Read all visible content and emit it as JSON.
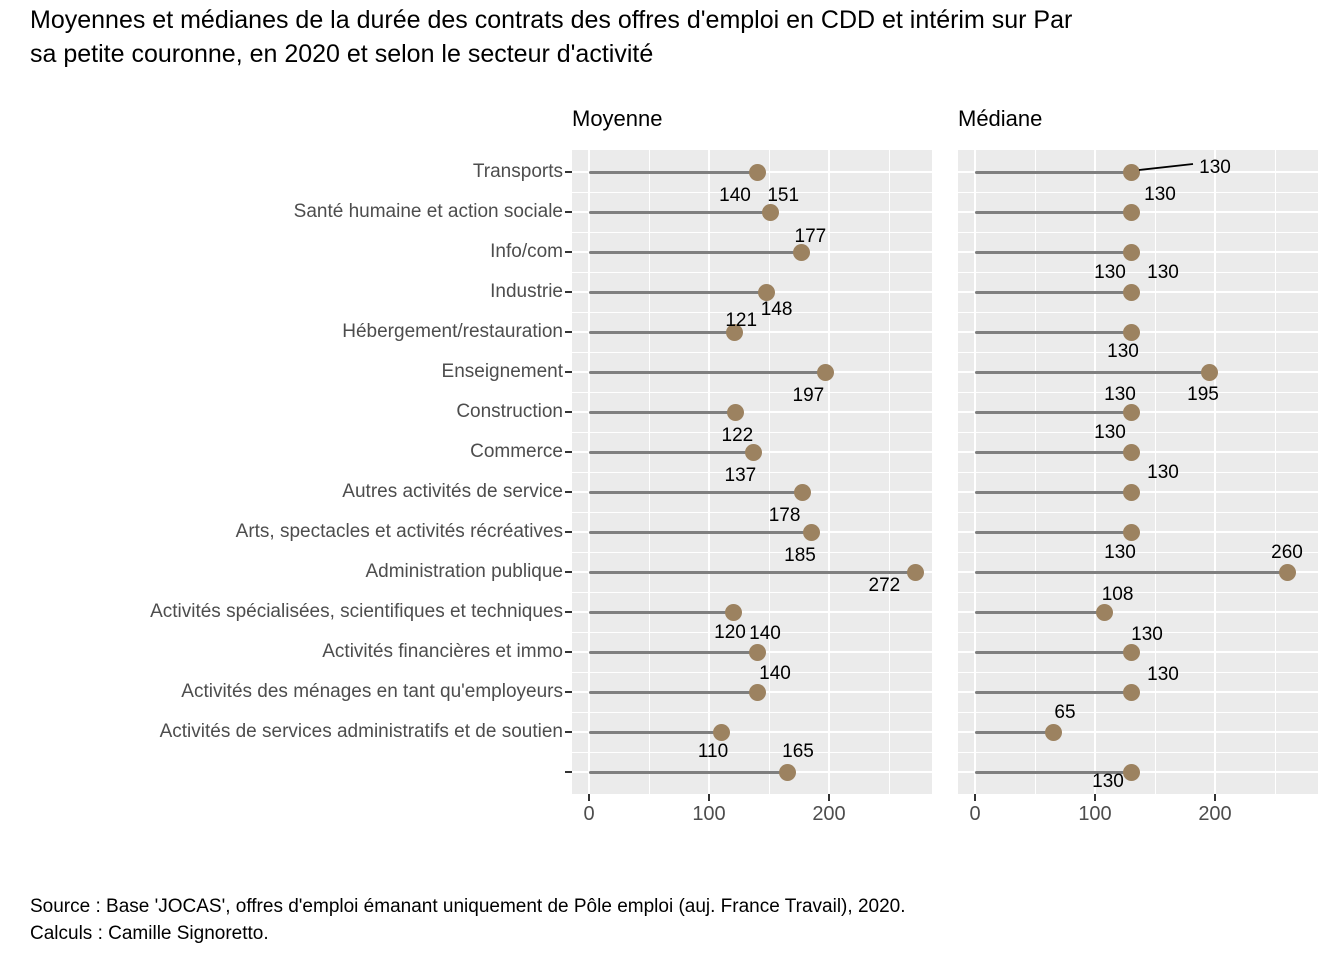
{
  "title": {
    "line1": "Moyennes et médianes de la durée des contrats des offres d'emploi en CDD et intérim sur Par",
    "line2": "sa petite couronne, en 2020 et selon le secteur d'activité"
  },
  "source": {
    "line1": "Source : Base 'JOCAS', offres d'emploi émanant uniquement de Pôle emploi (auj. France Travail), 2020.",
    "line2": "Calculs : Camille Signoretto."
  },
  "chart_data": {
    "type": "scatter",
    "variant": "lollipop-dot-plot",
    "facets": [
      "Moyenne",
      "Médiane"
    ],
    "categories": [
      "Transports",
      "Santé humaine et action sociale",
      "Info/com",
      "Industrie",
      "Hébergement/restauration",
      "Enseignement",
      "Construction",
      "Commerce",
      "Autres activités de service",
      "Arts, spectacles et activités récréatives",
      "Administration publique",
      "Activités spécialisées, scientifiques et techniques",
      "Activités financières et immo",
      "Activités des ménages en tant qu'employeurs",
      "Activités de services administratifs et de soutien",
      ""
    ],
    "series": [
      {
        "name": "Moyenne",
        "values": [
          140,
          151,
          177,
          148,
          121,
          197,
          122,
          137,
          178,
          185,
          272,
          120,
          140,
          140,
          110,
          165
        ]
      },
      {
        "name": "Médiane",
        "values": [
          130,
          130,
          130,
          130,
          130,
          195,
          130,
          130,
          130,
          130,
          260,
          108,
          130,
          130,
          65,
          130
        ]
      }
    ],
    "xticks": [
      "0",
      "100",
      "200"
    ],
    "xtick_values": [
      0,
      100,
      200
    ],
    "xlim": [
      -14,
      286
    ],
    "grid": true,
    "legend": "none",
    "annotation_leader": {
      "facet": "Médiane",
      "category": "Transports",
      "label": "130"
    },
    "colors": {
      "point": "#9C8260",
      "stem": "#7F7F7F",
      "panel_bg": "#EBEBEB",
      "grid": "#FFFFFF",
      "axis_text": "#4D4D4D",
      "tick": "#333333",
      "value_label": "#000000",
      "leader": "#000000"
    },
    "label_offsets": {
      "moyenne": [
        [
          -22,
          24
        ],
        [
          13,
          -16
        ],
        [
          9,
          -15
        ],
        [
          10,
          18
        ],
        [
          7,
          -11
        ],
        [
          -17,
          24
        ],
        [
          2,
          24
        ],
        [
          -13,
          24
        ],
        [
          -18,
          24
        ],
        [
          -11,
          24
        ],
        [
          -31,
          14
        ],
        [
          -3,
          21
        ],
        [
          8,
          -18
        ],
        [
          18,
          -18
        ],
        [
          -8,
          20
        ],
        [
          11,
          -20
        ]
      ],
      "mediane": [
        [
          84,
          -4
        ],
        [
          29,
          -17
        ],
        [
          -21,
          21
        ],
        [
          32,
          -19
        ],
        [
          -8,
          20
        ],
        [
          -6,
          23
        ],
        [
          -11,
          -17
        ],
        [
          -21,
          -19
        ],
        [
          32,
          -19
        ],
        [
          -11,
          21
        ],
        [
          0,
          -19
        ],
        [
          13,
          -17
        ],
        [
          16,
          -17
        ],
        [
          32,
          -17
        ],
        [
          12,
          -19
        ],
        [
          -23,
          10
        ]
      ]
    }
  }
}
